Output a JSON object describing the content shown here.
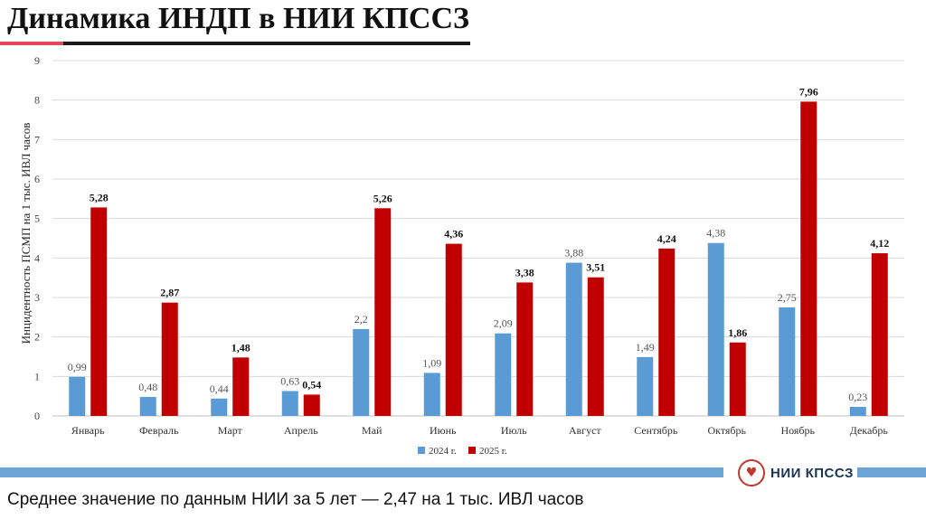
{
  "title": "Динамика ИНДП в НИИ КПССЗ",
  "logo_text": "НИИ КПССЗ",
  "logo_icon": "heart-logo-icon",
  "footnote": "Среднее значение по данным НИИ за 5 лет — 2,47 на 1 тыс. ИВЛ часов",
  "colors": {
    "series_2024": "#5b9bd5",
    "series_2025": "#c00000",
    "accent": "#e04a57",
    "footer_bar": "#6aa5d6"
  },
  "chart_data": {
    "type": "bar",
    "ylabel": "Инцидентность ПСМП на 1 тыс. ИВЛ часов",
    "xlabel": "",
    "ylim": [
      0,
      9
    ],
    "yticks": [
      "0",
      "1",
      "2",
      "3",
      "4",
      "5",
      "6",
      "7",
      "8",
      "9"
    ],
    "grid": true,
    "legend_position": "bottom",
    "categories": [
      "Январь",
      "Февраль",
      "Март",
      "Апрель",
      "Май",
      "Июнь",
      "Июль",
      "Август",
      "Сентябрь",
      "Октябрь",
      "Ноябрь",
      "Декабрь"
    ],
    "series": [
      {
        "name": "2024 г.",
        "values": [
          0.99,
          0.48,
          0.44,
          0.63,
          2.2,
          1.09,
          2.09,
          3.88,
          1.49,
          4.38,
          2.75,
          0.23
        ],
        "labels": [
          "0,99",
          "0,48",
          "0,44",
          "0,63",
          "2,2",
          "1,09",
          "2,09",
          "3,88",
          "1,49",
          "4,38",
          "2,75",
          "0,23"
        ]
      },
      {
        "name": "2025 г.",
        "values": [
          5.28,
          2.87,
          1.48,
          0.54,
          5.26,
          4.36,
          3.38,
          3.51,
          4.24,
          1.86,
          7.96,
          4.12
        ],
        "labels": [
          "5,28",
          "2,87",
          "1,48",
          "0,54",
          "5,26",
          "4,36",
          "3,38",
          "3,51",
          "4,24",
          "1,86",
          "7,96",
          "4,12"
        ]
      }
    ]
  }
}
